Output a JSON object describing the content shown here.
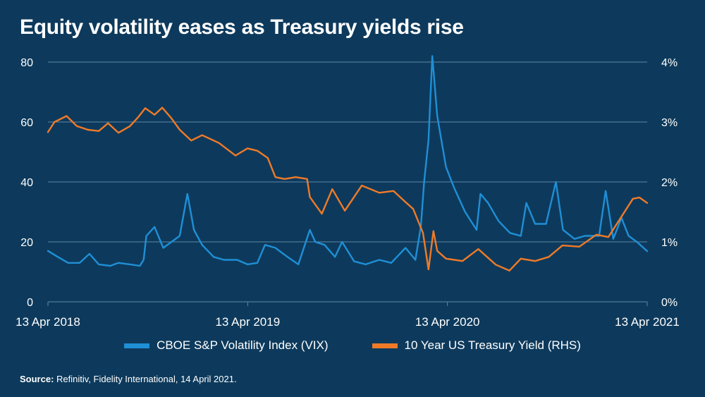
{
  "title": "Equity volatility eases as Treasury yields rise",
  "legend": {
    "vix_label": "CBOE S&P Volatility Index (VIX)",
    "yield_label": "10 Year US Treasury Yield (RHS)"
  },
  "source": {
    "label": "Source:",
    "text": " Refinitiv, Fidelity International, 14 April 2021."
  },
  "chart_data": {
    "type": "line",
    "x_range": [
      "2018-04-13",
      "2021-04-13"
    ],
    "x_ticks": [
      "13 Apr 2018",
      "13 Apr 2019",
      "13 Apr 2020",
      "13 Apr 2021"
    ],
    "y_left": {
      "range": [
        0,
        80
      ],
      "ticks": [
        "0",
        "20",
        "40",
        "60",
        "80"
      ]
    },
    "y_right": {
      "range": [
        0,
        4
      ],
      "ticks": [
        "0%",
        "1%",
        "2%",
        "3%",
        "4%"
      ]
    },
    "grid": "horizontal",
    "legend_position": "bottom",
    "colors": {
      "vix": "#1f8fd6",
      "yield": "#f07a28",
      "background": "#0d3a5c",
      "grid": "#5f86a5"
    },
    "series": [
      {
        "name": "CBOE S&P Volatility Index (VIX)",
        "axis": "left",
        "points": [
          [
            "2018-04-13",
            17
          ],
          [
            "2018-05-01",
            15
          ],
          [
            "2018-05-20",
            13
          ],
          [
            "2018-06-10",
            13
          ],
          [
            "2018-06-28",
            16
          ],
          [
            "2018-07-15",
            12.5
          ],
          [
            "2018-08-05",
            12
          ],
          [
            "2018-08-20",
            13
          ],
          [
            "2018-09-10",
            12.5
          ],
          [
            "2018-09-28",
            12
          ],
          [
            "2018-10-05",
            14
          ],
          [
            "2018-10-10",
            22
          ],
          [
            "2018-10-25",
            25
          ],
          [
            "2018-11-10",
            18
          ],
          [
            "2018-11-25",
            20
          ],
          [
            "2018-12-10",
            22
          ],
          [
            "2018-12-24",
            36
          ],
          [
            "2019-01-05",
            24
          ],
          [
            "2019-01-20",
            19
          ],
          [
            "2019-02-10",
            15
          ],
          [
            "2019-03-01",
            14
          ],
          [
            "2019-03-25",
            14
          ],
          [
            "2019-04-13",
            12.5
          ],
          [
            "2019-05-01",
            13
          ],
          [
            "2019-05-15",
            19
          ],
          [
            "2019-06-03",
            18
          ],
          [
            "2019-06-25",
            15
          ],
          [
            "2019-07-15",
            12.5
          ],
          [
            "2019-08-05",
            24
          ],
          [
            "2019-08-15",
            20
          ],
          [
            "2019-09-01",
            19
          ],
          [
            "2019-09-20",
            15
          ],
          [
            "2019-10-03",
            20
          ],
          [
            "2019-10-25",
            13.5
          ],
          [
            "2019-11-15",
            12.5
          ],
          [
            "2019-12-10",
            14
          ],
          [
            "2020-01-01",
            13
          ],
          [
            "2020-01-27",
            18
          ],
          [
            "2020-02-14",
            14
          ],
          [
            "2020-02-24",
            25
          ],
          [
            "2020-03-01",
            40
          ],
          [
            "2020-03-09",
            54
          ],
          [
            "2020-03-16",
            82
          ],
          [
            "2020-03-25",
            62
          ],
          [
            "2020-04-10",
            45
          ],
          [
            "2020-04-25",
            38
          ],
          [
            "2020-05-15",
            30
          ],
          [
            "2020-06-05",
            24
          ],
          [
            "2020-06-12",
            36
          ],
          [
            "2020-06-26",
            33
          ],
          [
            "2020-07-15",
            27
          ],
          [
            "2020-08-05",
            23
          ],
          [
            "2020-08-25",
            22
          ],
          [
            "2020-09-04",
            33
          ],
          [
            "2020-09-20",
            26
          ],
          [
            "2020-10-10",
            26
          ],
          [
            "2020-10-28",
            40
          ],
          [
            "2020-11-10",
            24
          ],
          [
            "2020-12-01",
            21
          ],
          [
            "2020-12-20",
            22
          ],
          [
            "2021-01-15",
            22
          ],
          [
            "2021-01-27",
            37
          ],
          [
            "2021-02-10",
            21
          ],
          [
            "2021-02-25",
            28
          ],
          [
            "2021-03-10",
            22
          ],
          [
            "2021-03-25",
            20
          ],
          [
            "2021-04-13",
            16.9
          ]
        ]
      },
      {
        "name": "10 Year US Treasury Yield (RHS)",
        "axis": "right",
        "points": [
          [
            "2018-04-13",
            2.83
          ],
          [
            "2018-04-25",
            3.0
          ],
          [
            "2018-05-17",
            3.1
          ],
          [
            "2018-06-05",
            2.93
          ],
          [
            "2018-06-25",
            2.87
          ],
          [
            "2018-07-15",
            2.85
          ],
          [
            "2018-08-01",
            2.98
          ],
          [
            "2018-08-20",
            2.82
          ],
          [
            "2018-09-10",
            2.93
          ],
          [
            "2018-09-25",
            3.08
          ],
          [
            "2018-10-08",
            3.23
          ],
          [
            "2018-10-25",
            3.12
          ],
          [
            "2018-11-08",
            3.24
          ],
          [
            "2018-11-25",
            3.06
          ],
          [
            "2018-12-10",
            2.87
          ],
          [
            "2018-12-31",
            2.69
          ],
          [
            "2019-01-20",
            2.78
          ],
          [
            "2019-02-20",
            2.65
          ],
          [
            "2019-03-22",
            2.44
          ],
          [
            "2019-04-13",
            2.56
          ],
          [
            "2019-05-01",
            2.52
          ],
          [
            "2019-05-20",
            2.4
          ],
          [
            "2019-06-03",
            2.08
          ],
          [
            "2019-06-20",
            2.05
          ],
          [
            "2019-07-10",
            2.08
          ],
          [
            "2019-07-31",
            2.05
          ],
          [
            "2019-08-05",
            1.75
          ],
          [
            "2019-08-27",
            1.47
          ],
          [
            "2019-09-15",
            1.88
          ],
          [
            "2019-10-08",
            1.52
          ],
          [
            "2019-11-08",
            1.94
          ],
          [
            "2019-12-10",
            1.82
          ],
          [
            "2020-01-05",
            1.85
          ],
          [
            "2020-01-25",
            1.68
          ],
          [
            "2020-02-10",
            1.55
          ],
          [
            "2020-02-28",
            1.15
          ],
          [
            "2020-03-09",
            0.54
          ],
          [
            "2020-03-18",
            1.18
          ],
          [
            "2020-03-25",
            0.85
          ],
          [
            "2020-04-10",
            0.72
          ],
          [
            "2020-05-10",
            0.68
          ],
          [
            "2020-06-08",
            0.88
          ],
          [
            "2020-07-10",
            0.62
          ],
          [
            "2020-08-04",
            0.52
          ],
          [
            "2020-08-25",
            0.72
          ],
          [
            "2020-09-20",
            0.68
          ],
          [
            "2020-10-15",
            0.75
          ],
          [
            "2020-11-09",
            0.94
          ],
          [
            "2020-12-10",
            0.92
          ],
          [
            "2021-01-10",
            1.12
          ],
          [
            "2021-02-01",
            1.08
          ],
          [
            "2021-02-25",
            1.42
          ],
          [
            "2021-03-18",
            1.72
          ],
          [
            "2021-03-30",
            1.74
          ],
          [
            "2021-04-13",
            1.65
          ]
        ]
      }
    ]
  }
}
